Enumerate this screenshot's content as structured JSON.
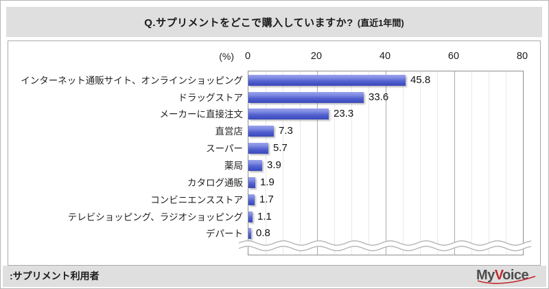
{
  "header": {
    "title_main": "Q.サプリメントをどこで購入していますか?",
    "title_note": "(直近1年間)"
  },
  "axis": {
    "unit_label": "(%)",
    "ticks": [
      0,
      20,
      40,
      60,
      80
    ]
  },
  "chart_data": {
    "type": "bar",
    "orientation": "horizontal",
    "title": "Q.サプリメントをどこで購入していますか?(直近1年間)",
    "unit": "%",
    "categories": [
      "インターネット通販サイト、オンラインショッピング",
      "ドラッグストア",
      "メーカーに直接注文",
      "直営店",
      "スーパー",
      "薬局",
      "カタログ通販",
      "コンビニエンスストア",
      "テレビショッピング、ラジオショッピング",
      "デパート"
    ],
    "values": [
      45.8,
      33.6,
      23.3,
      7.3,
      5.7,
      3.9,
      1.9,
      1.7,
      1.1,
      0.8
    ],
    "xlim": [
      0,
      80
    ],
    "gridlines": {
      "major_every": 20,
      "minor_every": 5
    },
    "legend": "none",
    "truncated_bottom": true
  },
  "footer": {
    "note": ":サプリメント利用者",
    "logo": {
      "pre": "My",
      "accent": "V",
      "post": "oice"
    }
  },
  "colors": {
    "bar_top": "#9aa3ec",
    "bar_bottom": "#3d4bba",
    "major_grid": "#ababab",
    "minor_grid": "#e8e8e8",
    "plot_border": "#8e8e8e",
    "band_bg": "#dfdfdf",
    "wave_stroke": "#b4b4b4",
    "logo_red": "#c1272d"
  }
}
